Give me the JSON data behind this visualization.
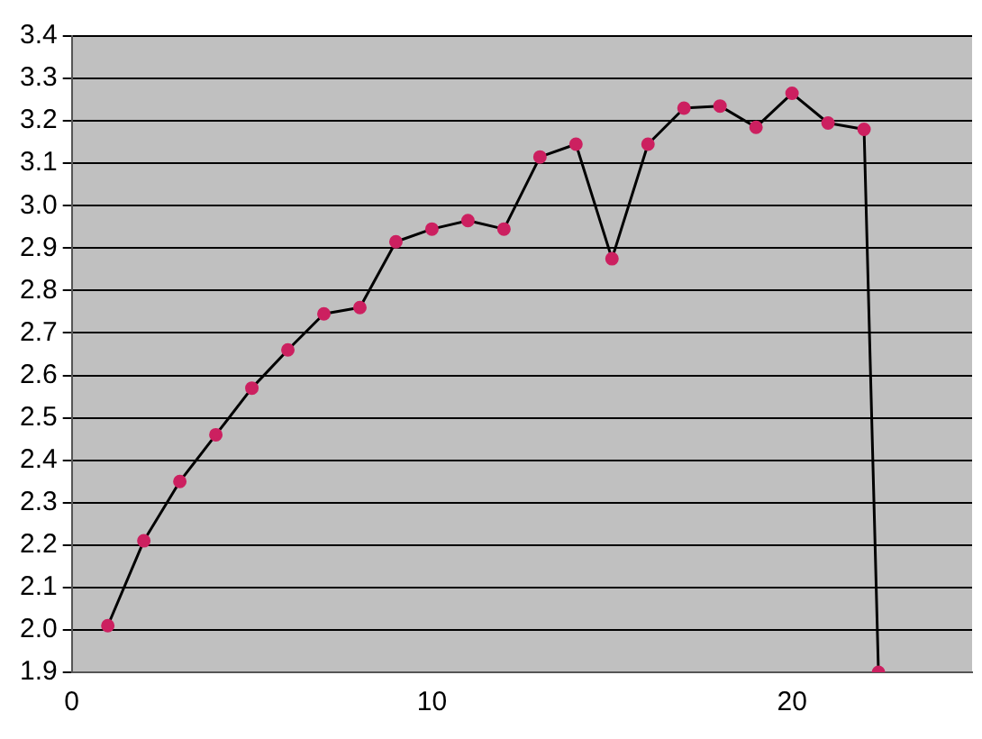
{
  "chart_data": {
    "type": "line",
    "x": [
      1,
      2,
      3,
      4,
      5,
      6,
      7,
      8,
      9,
      10,
      11,
      12,
      13,
      14,
      15,
      16,
      17,
      18,
      19,
      20,
      21,
      22,
      22.4
    ],
    "series": [
      {
        "color": "#000000",
        "values": [
          2.01,
          2.21,
          2.35,
          2.46,
          2.57,
          2.66,
          2.745,
          2.76,
          2.915,
          2.945,
          2.965,
          2.945,
          3.115,
          3.145,
          2.875,
          3.145,
          3.23,
          3.235,
          3.185,
          3.265,
          3.195,
          3.18,
          1.9
        ]
      }
    ],
    "marker": "circle",
    "xlim": [
      0,
      25
    ],
    "xticks": [
      0,
      10,
      20
    ],
    "ylim": [
      1.9,
      3.4
    ],
    "yticks": [
      1.9,
      {
        "value": 2,
        "label": "2.0"
      },
      2.1,
      2.2,
      2.3,
      2.4,
      2.5,
      2.6,
      2.7,
      2.8,
      2.9,
      {
        "value": 3,
        "label": "3.0"
      },
      3.1,
      3.2,
      3.3,
      3.4
    ],
    "grid": "y",
    "legend": false
  }
}
